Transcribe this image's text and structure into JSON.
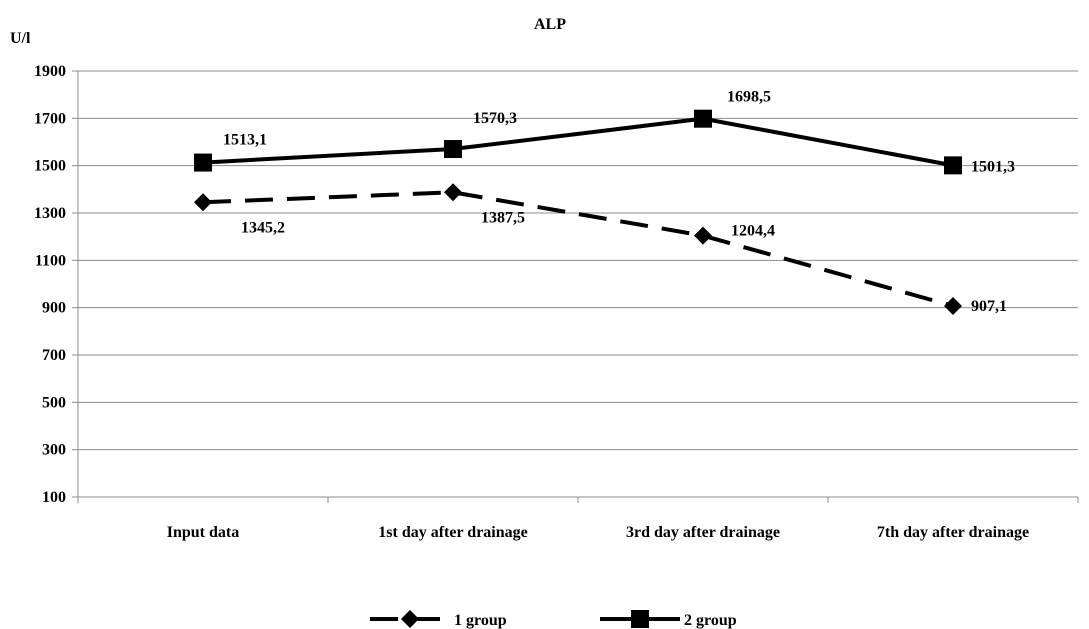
{
  "chart_data": {
    "type": "line",
    "title": "ALP",
    "ylabel": "U/l",
    "xlabel": "",
    "categories": [
      "Input data",
      "1st day after drainage",
      "3rd day after drainage",
      "7th day after drainage"
    ],
    "yticks": [
      "100",
      "300",
      "500",
      "700",
      "900",
      "1100",
      "1300",
      "1500",
      "1700",
      "1900"
    ],
    "ylim": [
      100,
      1900
    ],
    "grid": "horizontal",
    "legend_position": "bottom",
    "series": [
      {
        "name": "1 group",
        "values": [
          1345.2,
          1387.5,
          1204.4,
          907.1
        ],
        "labels": [
          "1345,2",
          "1387,5",
          "1204,4",
          "907,1"
        ],
        "style": "dashed",
        "marker": "diamond",
        "color": "#000000"
      },
      {
        "name": "2 group",
        "values": [
          1513.1,
          1570.3,
          1698.5,
          1501.3
        ],
        "labels": [
          "1513,1",
          "1570,3",
          "1698,5",
          "1501,3"
        ],
        "style": "solid",
        "marker": "square",
        "color": "#000000"
      }
    ]
  }
}
